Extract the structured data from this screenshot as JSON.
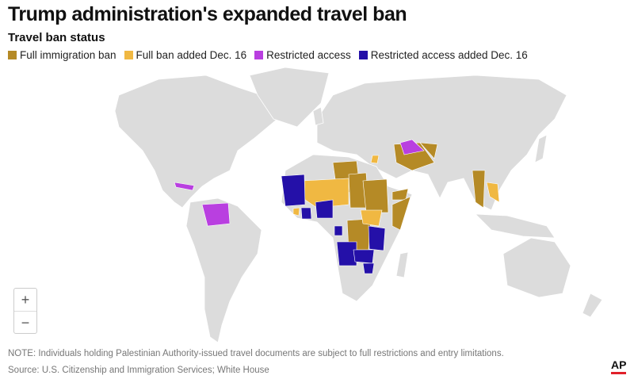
{
  "title": "Trump administration's expanded travel ban",
  "subtitle": "Travel ban status",
  "legend": [
    {
      "label": "Full immigration ban",
      "color": "#b58a26"
    },
    {
      "label": "Full ban added Dec. 16",
      "color": "#f0b842"
    },
    {
      "label": "Restricted access",
      "color": "#b93fe0"
    },
    {
      "label": "Restricted access added Dec. 16",
      "color": "#2410a8"
    }
  ],
  "land_color": "#dcdcdc",
  "zoom": {
    "in": "+",
    "out": "−"
  },
  "note": "NOTE: Individuals holding Palestinian Authority-issued travel documents are subject to full restrictions and entry limitations.",
  "source": "Source: U.S. Citizenship and Immigration Services; White House",
  "logo": "AP"
}
